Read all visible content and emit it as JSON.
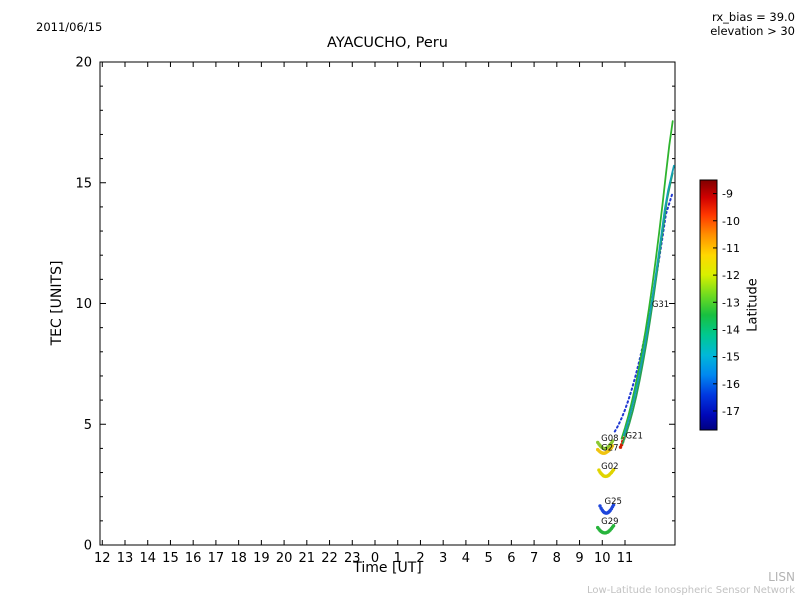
{
  "header": {
    "date": "2011/06/15",
    "rx_bias": "rx_bias = 39.0",
    "elevation": "elevation > 30"
  },
  "footer": {
    "brand": "LISN",
    "name": "Low-Latitude Ionospheric Sensor Network"
  },
  "chart_data": {
    "type": "scatter",
    "title": "AYACUCHO, Peru",
    "xlabel": "Time [UT]",
    "ylabel": "TEC [UNITS]",
    "x_note": "hours UT since 00:00 on 2011/06/15; values >= 24 are the next day",
    "xlim": [
      11.9,
      37.2
    ],
    "ylim": [
      0,
      20
    ],
    "grid": false,
    "x_tick_values": [
      12,
      13,
      14,
      15,
      16,
      17,
      18,
      19,
      20,
      21,
      22,
      23,
      24,
      25,
      26,
      27,
      28,
      29,
      30,
      31,
      32,
      33,
      34,
      35
    ],
    "x_tick_labels": [
      "12",
      "13",
      "14",
      "15",
      "16",
      "17",
      "18",
      "19",
      "20",
      "21",
      "22",
      "23",
      "0",
      "1",
      "2",
      "3",
      "4",
      "5",
      "6",
      "7",
      "8",
      "9",
      "10",
      "11"
    ],
    "y_major_ticks": [
      0,
      5,
      10,
      15,
      20
    ],
    "y_minor_step": 1,
    "series": [
      {
        "name": "G08",
        "style": "scatter",
        "color": "#8cc832",
        "points": [
          [
            33.8,
            4.25
          ],
          [
            33.85,
            4.18
          ],
          [
            33.9,
            4.12
          ],
          [
            33.95,
            4.07
          ],
          [
            34.0,
            4.03
          ],
          [
            34.05,
            4.0
          ],
          [
            34.1,
            3.99
          ],
          [
            34.15,
            4.0
          ],
          [
            34.2,
            4.02
          ],
          [
            34.25,
            4.06
          ],
          [
            34.3,
            4.1
          ],
          [
            34.35,
            4.16
          ],
          [
            34.4,
            4.22
          ],
          [
            34.45,
            4.3
          ]
        ]
      },
      {
        "name": "G27",
        "style": "scatter",
        "color": "#f0c410",
        "points": [
          [
            33.8,
            3.95
          ],
          [
            33.85,
            3.9
          ],
          [
            33.9,
            3.86
          ],
          [
            33.95,
            3.83
          ],
          [
            34.0,
            3.81
          ],
          [
            34.05,
            3.8
          ],
          [
            34.1,
            3.8
          ],
          [
            34.15,
            3.82
          ],
          [
            34.2,
            3.85
          ],
          [
            34.25,
            3.88
          ],
          [
            34.3,
            3.92
          ],
          [
            34.35,
            3.97
          ],
          [
            34.4,
            4.03
          ],
          [
            34.45,
            4.1
          ]
        ]
      },
      {
        "name": "G02",
        "style": "scatter",
        "color": "#e0d400",
        "points": [
          [
            33.85,
            3.1
          ],
          [
            33.9,
            3.02
          ],
          [
            33.95,
            2.96
          ],
          [
            34.0,
            2.91
          ],
          [
            34.05,
            2.87
          ],
          [
            34.1,
            2.85
          ],
          [
            34.15,
            2.84
          ],
          [
            34.2,
            2.85
          ],
          [
            34.25,
            2.87
          ],
          [
            34.3,
            2.9
          ],
          [
            34.35,
            2.95
          ],
          [
            34.4,
            3.0
          ],
          [
            34.45,
            3.06
          ],
          [
            34.5,
            3.12
          ]
        ]
      },
      {
        "name": "G25",
        "style": "scatter",
        "color": "#1e46dc",
        "points": [
          [
            33.9,
            1.62
          ],
          [
            33.95,
            1.52
          ],
          [
            34.0,
            1.44
          ],
          [
            34.05,
            1.38
          ],
          [
            34.1,
            1.34
          ],
          [
            34.15,
            1.32
          ],
          [
            34.2,
            1.32
          ],
          [
            34.25,
            1.34
          ],
          [
            34.3,
            1.38
          ],
          [
            34.35,
            1.43
          ],
          [
            34.4,
            1.5
          ],
          [
            34.45,
            1.58
          ],
          [
            34.5,
            1.66
          ]
        ]
      },
      {
        "name": "G29",
        "style": "scatter",
        "color": "#28b43c",
        "points": [
          [
            33.8,
            0.72
          ],
          [
            33.85,
            0.66
          ],
          [
            33.9,
            0.6
          ],
          [
            33.95,
            0.56
          ],
          [
            34.0,
            0.53
          ],
          [
            34.05,
            0.51
          ],
          [
            34.1,
            0.5
          ],
          [
            34.15,
            0.5
          ],
          [
            34.2,
            0.52
          ],
          [
            34.25,
            0.54
          ],
          [
            34.3,
            0.58
          ],
          [
            34.35,
            0.62
          ],
          [
            34.4,
            0.68
          ],
          [
            34.45,
            0.74
          ],
          [
            34.5,
            0.8
          ]
        ]
      },
      {
        "name": "G21",
        "style": "scatter",
        "color": "#d21e00",
        "points": [
          [
            34.8,
            4.05
          ],
          [
            34.85,
            4.15
          ],
          [
            34.9,
            4.28
          ],
          [
            34.95,
            4.42
          ],
          [
            35.0,
            4.58
          ],
          [
            35.05,
            4.76
          ],
          [
            35.1,
            4.95
          ],
          [
            35.15,
            5.15
          ]
        ]
      },
      {
        "name": "G31",
        "style": "dotted",
        "color": "#2038d2",
        "points": [
          [
            34.55,
            4.7
          ],
          [
            34.7,
            4.95
          ],
          [
            34.85,
            5.25
          ],
          [
            35.0,
            5.6
          ],
          [
            35.15,
            6.0
          ],
          [
            35.3,
            6.45
          ],
          [
            35.45,
            6.95
          ],
          [
            35.6,
            7.5
          ],
          [
            35.75,
            8.1
          ],
          [
            35.9,
            8.75
          ],
          [
            36.05,
            9.45
          ],
          [
            36.2,
            10.2
          ],
          [
            36.35,
            11.0
          ],
          [
            36.5,
            11.85
          ],
          [
            36.65,
            12.75
          ],
          [
            36.8,
            13.7
          ],
          [
            36.95,
            14.15
          ],
          [
            37.1,
            14.6
          ]
        ]
      },
      {
        "name": "track-green-1",
        "style": "line",
        "color": "#2eb42e",
        "points": [
          [
            34.85,
            4.4
          ],
          [
            35.0,
            4.85
          ],
          [
            35.15,
            5.35
          ],
          [
            35.3,
            5.92
          ],
          [
            35.45,
            6.55
          ],
          [
            35.6,
            7.25
          ],
          [
            35.75,
            8.02
          ],
          [
            35.9,
            8.86
          ],
          [
            36.05,
            9.77
          ],
          [
            36.2,
            10.75
          ],
          [
            36.35,
            11.8
          ],
          [
            36.5,
            12.92
          ],
          [
            36.65,
            14.1
          ],
          [
            36.8,
            15.35
          ],
          [
            36.95,
            16.55
          ],
          [
            37.1,
            17.55
          ]
        ]
      },
      {
        "name": "track-green-2",
        "style": "line",
        "color": "#28a050",
        "points": [
          [
            34.9,
            4.2
          ],
          [
            35.05,
            4.6
          ],
          [
            35.2,
            5.05
          ],
          [
            35.35,
            5.58
          ],
          [
            35.5,
            6.18
          ],
          [
            35.65,
            6.85
          ],
          [
            35.8,
            7.6
          ],
          [
            35.95,
            8.4
          ],
          [
            36.1,
            9.28
          ],
          [
            36.25,
            10.22
          ],
          [
            36.4,
            11.22
          ],
          [
            36.55,
            12.28
          ],
          [
            36.7,
            13.28
          ],
          [
            36.85,
            14.3
          ],
          [
            37.0,
            15.0
          ],
          [
            37.1,
            15.4
          ]
        ]
      },
      {
        "name": "track-teal",
        "style": "line",
        "color": "#14a0b4",
        "points": [
          [
            34.95,
            4.55
          ],
          [
            35.1,
            5.0
          ],
          [
            35.25,
            5.5
          ],
          [
            35.4,
            6.08
          ],
          [
            35.55,
            6.72
          ],
          [
            35.7,
            7.42
          ],
          [
            35.85,
            8.18
          ],
          [
            36.0,
            9.0
          ],
          [
            36.15,
            9.88
          ],
          [
            36.3,
            10.82
          ],
          [
            36.45,
            11.82
          ],
          [
            36.6,
            12.85
          ],
          [
            36.75,
            13.9
          ],
          [
            36.9,
            14.7
          ],
          [
            37.05,
            15.3
          ],
          [
            37.15,
            15.7
          ]
        ]
      }
    ],
    "annotations": [
      {
        "text": "G08",
        "x": 33.95,
        "y": 4.3
      },
      {
        "text": "G27",
        "x": 33.95,
        "y": 3.92
      },
      {
        "text": "G02",
        "x": 33.95,
        "y": 3.15
      },
      {
        "text": "G25",
        "x": 34.1,
        "y": 1.7
      },
      {
        "text": "G29",
        "x": 33.95,
        "y": 0.86
      },
      {
        "text": "G21",
        "x": 35.02,
        "y": 4.4
      },
      {
        "text": "G31",
        "x": 36.18,
        "y": 9.85
      }
    ],
    "colorbar": {
      "label": "Latitude",
      "ticks": [
        -9,
        -10,
        -11,
        -12,
        -13,
        -14,
        -15,
        -16,
        -17
      ],
      "tick_labels": [
        "-9",
        "-10",
        "-11",
        "-12",
        "-13",
        "-14",
        "-15",
        "-16",
        "-17"
      ],
      "domain": [
        -8.5,
        -17.7
      ],
      "stops": [
        [
          0.0,
          "#800000"
        ],
        [
          0.07,
          "#d00000"
        ],
        [
          0.14,
          "#ff3800"
        ],
        [
          0.22,
          "#ff9000"
        ],
        [
          0.3,
          "#ffd800"
        ],
        [
          0.38,
          "#d8f000"
        ],
        [
          0.46,
          "#70dc20"
        ],
        [
          0.54,
          "#18c040"
        ],
        [
          0.62,
          "#00c890"
        ],
        [
          0.7,
          "#00b8d8"
        ],
        [
          0.78,
          "#0088f0"
        ],
        [
          0.86,
          "#0038e0"
        ],
        [
          0.94,
          "#0008b8"
        ],
        [
          1.0,
          "#000080"
        ]
      ]
    }
  }
}
